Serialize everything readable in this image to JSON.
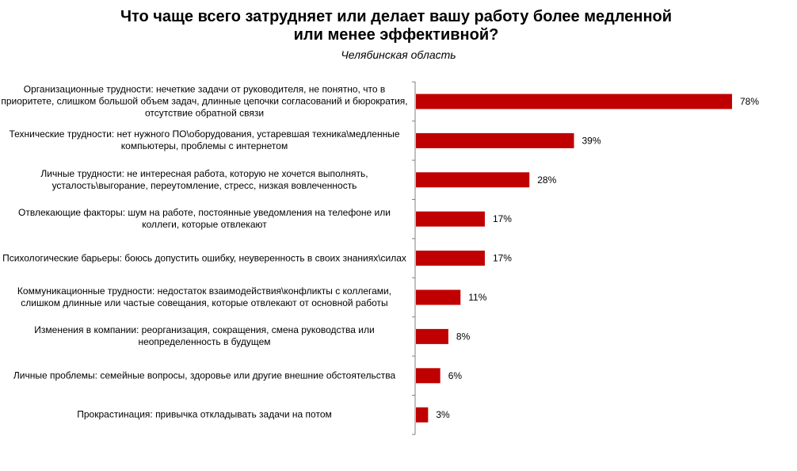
{
  "chart_data": {
    "type": "bar",
    "orientation": "horizontal",
    "title_lines": [
      "Что чаще всего затрудняет или делает вашу работу более медленной",
      "или менее эффективной?"
    ],
    "subtitle": "Челябинская  область",
    "categories": [
      "Организационные трудности: нечеткие задачи от руководителя, не понятно, что в приоритете, слишком большой объем задач, длинные цепочки согласований и бюрократия, отсутствие обратной связи",
      "Технические трудности: нет нужного ПО\\оборудования, устаревшая техника\\медленные компьютеры, проблемы с интернетом",
      "Личные трудности: не интересная работа, которую не хочется выполнять, усталость\\выгорание, переутомление, стресс, низкая вовлеченность",
      "Отвлекающие факторы: шум на работе, постоянные уведомления на телефоне или  коллеги, которые отвлекают",
      "Психологические барьеры: боюсь допустить ошибку, неуверенность в своих знаниях\\силах",
      "Коммуникационные трудности: недостаток взаимодействия\\конфликты с коллегами, слишком длинные или частые совещания, которые отвлекают от основной работы",
      "Изменения в компании: реорганизация, сокращения, смена руководства или неопределенность в будущем",
      "Личные проблемы: семейные вопросы, здоровье или другие внешние обстоятельства",
      "Прокрастинация: привычка откладывать задачи на потом"
    ],
    "values": [
      78,
      39,
      28,
      17,
      17,
      11,
      8,
      6,
      3
    ],
    "value_labels": [
      "78%",
      "39%",
      "28%",
      "17%",
      "17%",
      "11%",
      "8%",
      "6%",
      "3%"
    ],
    "bar_color": "#C00000",
    "axis_color": "#808080",
    "value_unit": "%",
    "xlim": [
      0,
      78
    ],
    "grid": false,
    "legend": "none"
  }
}
